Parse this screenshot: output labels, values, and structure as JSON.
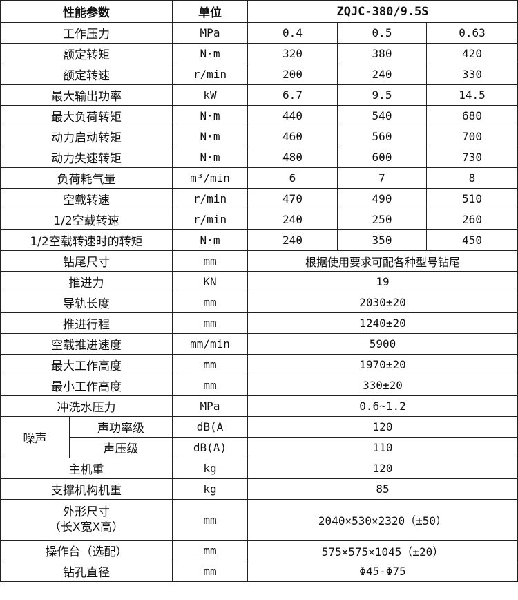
{
  "header": {
    "param": "性能参数",
    "unit": "单位",
    "model": "ZQJC-380/9.5S"
  },
  "rows3": [
    {
      "name": "工作压力",
      "unit": "MPa",
      "values": [
        "0.4",
        "0.5",
        "0.63"
      ]
    },
    {
      "name": "额定转矩",
      "unit": "N·m",
      "values": [
        "320",
        "380",
        "420"
      ]
    },
    {
      "name": "额定转速",
      "unit": "r/min",
      "values": [
        "200",
        "240",
        "330"
      ]
    },
    {
      "name": "最大输出功率",
      "unit": "kW",
      "values": [
        "6.7",
        "9.5",
        "14.5"
      ]
    },
    {
      "name": "最大负荷转矩",
      "unit": "N·m",
      "values": [
        "440",
        "540",
        "680"
      ]
    },
    {
      "name": "动力启动转矩",
      "unit": "N·m",
      "values": [
        "460",
        "560",
        "700"
      ]
    },
    {
      "name": "动力失速转矩",
      "unit": "N·m",
      "values": [
        "480",
        "600",
        "730"
      ]
    },
    {
      "name": "负荷耗气量",
      "unit": "m³/min",
      "values": [
        "6",
        "7",
        "8"
      ]
    },
    {
      "name": "空载转速",
      "unit": "r/min",
      "values": [
        "470",
        "490",
        "510"
      ]
    },
    {
      "name": "1/2空载转速",
      "unit": "r/min",
      "values": [
        "240",
        "250",
        "260"
      ]
    },
    {
      "name": "1/2空载转速时的转矩",
      "unit": "N·m",
      "values": [
        "240",
        "350",
        "450"
      ]
    }
  ],
  "rows1": [
    {
      "name": "钻尾尺寸",
      "unit": "mm",
      "value": "根据使用要求可配各种型号钻尾"
    },
    {
      "name": "推进力",
      "unit": "KN",
      "value": "19"
    },
    {
      "name": "导轨长度",
      "unit": "mm",
      "value": "2030±20"
    },
    {
      "name": "推进行程",
      "unit": "mm",
      "value": "1240±20"
    },
    {
      "name": "空载推进速度",
      "unit": "mm/min",
      "value": "5900"
    },
    {
      "name": "最大工作高度",
      "unit": "mm",
      "value": "1970±20"
    },
    {
      "name": "最小工作高度",
      "unit": "mm",
      "value": "330±20"
    },
    {
      "name": "冲洗水压力",
      "unit": "MPa",
      "value": "0.6~1.2"
    }
  ],
  "noise": {
    "label": "噪声",
    "rows": [
      {
        "name": "声功率级",
        "unit": "dB(A",
        "value": "120"
      },
      {
        "name": "声压级",
        "unit": "dB(A)",
        "value": "110"
      }
    ]
  },
  "rows2": [
    {
      "name": "主机重",
      "unit": "kg",
      "value": "120"
    },
    {
      "name": "支撑机构机重",
      "unit": "kg",
      "value": "85"
    }
  ],
  "dims": {
    "name": "外形尺寸",
    "name2": "（长X宽X高）",
    "unit": "mm",
    "value": "2040×530×2320（±50）"
  },
  "rows4": [
    {
      "name": "操作台（选配）",
      "unit": "mm",
      "value": "575×575×1045（±20）"
    },
    {
      "name": "钻孔直径",
      "unit": "mm",
      "value": "Φ45-Φ75"
    }
  ]
}
